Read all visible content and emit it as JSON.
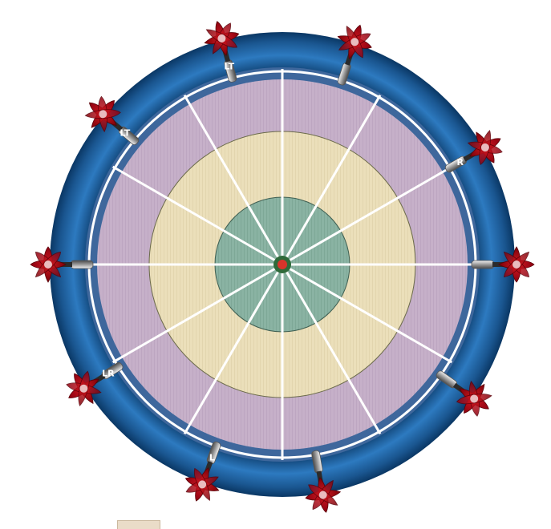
{
  "board": {
    "colors": {
      "outer_ring_dark": "#0b3d6b",
      "outer_ring_light": "#2a73b5",
      "inner_band": "#3f6a9f",
      "outer_zone": "#c9b3cc",
      "middle_zone": "#ece0bd",
      "inner_zone": "#8cb5a6",
      "bullseye": "#d9342b",
      "spokes": "#ffffff"
    }
  },
  "darts": [
    {
      "id": "dart-top-left",
      "label": "LT",
      "angle_deg": -105
    },
    {
      "id": "dart-top-right",
      "label": "",
      "angle_deg": -72
    },
    {
      "id": "dart-right-upper",
      "label": "R",
      "angle_deg": -30
    },
    {
      "id": "dart-right",
      "label": "",
      "angle_deg": 0
    },
    {
      "id": "dart-right-lower",
      "label": "",
      "angle_deg": 35
    },
    {
      "id": "dart-bottom-right",
      "label": "",
      "angle_deg": 80
    },
    {
      "id": "dart-bottom-left",
      "label": "L",
      "angle_deg": 110
    },
    {
      "id": "dart-left-lower",
      "label": "LR",
      "angle_deg": 148
    },
    {
      "id": "dart-left",
      "label": "",
      "angle_deg": 180
    },
    {
      "id": "dart-left-upper",
      "label": "LT",
      "angle_deg": -140
    }
  ],
  "icons": {
    "dart": "dart-icon",
    "bullseye": "bullseye-icon"
  }
}
